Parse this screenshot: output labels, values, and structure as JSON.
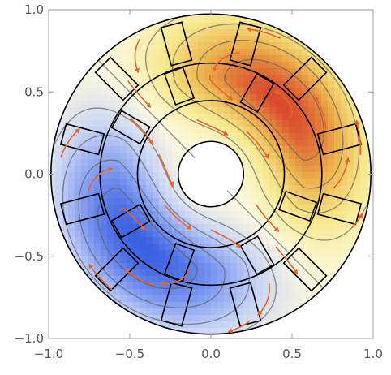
{
  "chart_data": {
    "type": "contour",
    "title": "",
    "xlabel": "",
    "ylabel": "",
    "xlim": [
      -1.0,
      1.0
    ],
    "ylim": [
      -1.0,
      1.0
    ],
    "x_ticks": [
      {
        "value": -1.0,
        "label": "−1.0"
      },
      {
        "value": -0.5,
        "label": "−0.5"
      },
      {
        "value": 0.0,
        "label": "0.0"
      },
      {
        "value": 0.5,
        "label": "0.5"
      },
      {
        "value": 1.0,
        "label": "1.0"
      }
    ],
    "y_ticks": [
      {
        "value": -1.0,
        "label": "−1.0"
      },
      {
        "value": -0.5,
        "label": "−0.5"
      },
      {
        "value": 0.0,
        "label": "0.0"
      },
      {
        "value": 0.5,
        "label": "0.5"
      },
      {
        "value": 1.0,
        "label": "1.0"
      }
    ],
    "geometry": {
      "outer_radius": 0.98,
      "stator_inner_radius": 0.68,
      "rotor_outer_radius": 0.45,
      "shaft_radius": 0.2,
      "stator_slot_angles_deg": [
        15,
        45,
        75,
        105,
        135,
        165,
        195,
        225,
        255,
        285,
        315,
        345
      ],
      "rotor_slot_angles_deg": [
        60,
        110,
        150,
        210,
        250,
        300,
        340
      ]
    },
    "field_orientation_deg": 45,
    "colormap": [
      "#3a5fe0",
      "#7f9af0",
      "#c8d4f5",
      "#fdf9e0",
      "#f7e88c",
      "#ecb04a",
      "#d94a2c"
    ],
    "contour_levels": 10,
    "grid": false,
    "legend": "none"
  }
}
